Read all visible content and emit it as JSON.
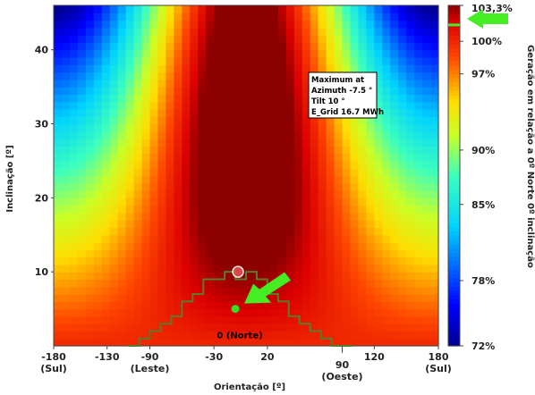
{
  "chart_data": {
    "type": "heatmap",
    "xlabel": "Orientação [º]",
    "ylabel": "Inclinação [º]",
    "colorbar_label": "Geração em relação a 0º Norte 0º inclinação",
    "x_range": [
      -180,
      180
    ],
    "y_range": [
      0,
      46
    ],
    "x_ticks": [
      {
        "value": -180,
        "label": "-180",
        "sub": "(Sul)"
      },
      {
        "value": -130,
        "label": "-130",
        "sub": ""
      },
      {
        "value": -90,
        "label": "-90",
        "sub": "(Leste)"
      },
      {
        "value": -30,
        "label": "-30",
        "sub": ""
      },
      {
        "value": 20,
        "label": "20",
        "sub": ""
      },
      {
        "value": 90,
        "label": "90",
        "sub": "(Oeste)"
      },
      {
        "value": 120,
        "label": "120",
        "sub": ""
      },
      {
        "value": 180,
        "label": "180",
        "sub": "(Sul)"
      }
    ],
    "y_ticks": [
      10,
      20,
      30,
      40
    ],
    "colorbar_range": [
      72,
      103.3
    ],
    "colorbar_ticks": [
      {
        "value": 103.3,
        "label": "103,3%"
      },
      {
        "value": 100,
        "label": "100%"
      },
      {
        "value": 97,
        "label": "97%"
      },
      {
        "value": 90,
        "label": "90%"
      },
      {
        "value": 85,
        "label": "85%"
      },
      {
        "value": 78,
        "label": "78%"
      },
      {
        "value": 72,
        "label": "72%"
      }
    ],
    "max_value": 103.3,
    "optimum_azimuth": -7.5,
    "optimum_tilt": 10,
    "info_box": [
      "Maximum at",
      "Azimuth -7.5 °",
      "Tilt 10 °",
      "E_Grid 16.7 MWh"
    ],
    "north_label": "0 (Norte)",
    "marker_current": {
      "azimuth": -10,
      "tilt": 5
    },
    "contour_100": {
      "x": [
        -110,
        -100,
        -100,
        -90,
        -90,
        -80,
        -80,
        -70,
        -70,
        -60,
        -60,
        -50,
        -50,
        -40,
        -40,
        -20,
        -20,
        -10,
        -10,
        0,
        0,
        10,
        10,
        20,
        20,
        30,
        30,
        40,
        40,
        50,
        50,
        60,
        60,
        70,
        70,
        80,
        80,
        90,
        90,
        100,
        100
      ],
      "y": [
        0,
        0,
        1,
        1,
        2,
        2,
        3,
        3,
        4,
        4,
        6,
        6,
        7,
        7,
        9,
        9,
        10,
        10,
        9,
        9,
        10,
        10,
        9,
        9,
        7,
        7,
        6,
        6,
        4,
        4,
        3,
        3,
        2,
        2,
        1,
        1,
        0,
        0,
        0,
        0,
        0
      ]
    },
    "colors": {
      "contour": "#5c7a2c",
      "marker_current": "#33dd22",
      "marker_max": "#e05050",
      "arrow": "#44ee22"
    }
  }
}
